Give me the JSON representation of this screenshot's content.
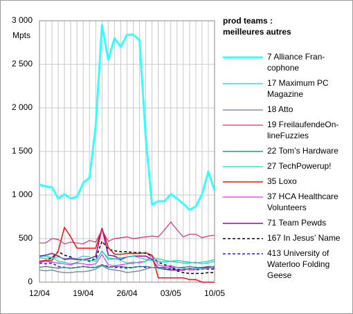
{
  "chart_data": {
    "type": "line",
    "y_label": "Mpts",
    "legend_title": [
      "prod teams :",
      "meilleures autres"
    ],
    "categories": [
      "12/04",
      null,
      null,
      null,
      null,
      null,
      null,
      "19/04",
      null,
      null,
      null,
      null,
      null,
      null,
      "26/04",
      null,
      null,
      null,
      null,
      null,
      null,
      "03/05",
      null,
      null,
      null,
      null,
      null,
      null,
      "10/05"
    ],
    "ylim": [
      0,
      3000
    ],
    "yticks": [
      0,
      500,
      {
        "value": 1000,
        "label": "1 000"
      },
      {
        "value": 1500,
        "label": "1 500"
      },
      {
        "value": 2000,
        "label": "2 000"
      },
      {
        "value": 2500,
        "label": "2 500"
      },
      {
        "value": 3000,
        "label": "3 000"
      }
    ],
    "grid": true,
    "legend": "right",
    "series": [
      {
        "name": "7 Alliance Fran-\ncophone",
        "color": "#33ffff",
        "width": 3,
        "dash": false,
        "values": [
          1120,
          1100,
          1090,
          960,
          1010,
          960,
          980,
          1140,
          1200,
          1800,
          2950,
          2550,
          2800,
          2700,
          2840,
          2840,
          2780,
          1650,
          890,
          930,
          930,
          1010,
          960,
          900,
          830,
          870,
          1010,
          1270,
          1050
        ]
      },
      {
        "name": "17 Maximum PC\nMagazine",
        "color": "#22c8c8",
        "width": 1.2,
        "dash": false,
        "values": [
          290,
          300,
          280,
          290,
          270,
          280,
          270,
          300,
          290,
          260,
          350,
          280,
          270,
          280,
          290,
          300,
          280,
          260,
          250,
          240,
          230,
          240,
          250,
          240,
          230,
          220,
          230,
          240,
          260
        ]
      },
      {
        "name": "18 Atto",
        "color": "#7f8fa6",
        "width": 1.5,
        "dash": false,
        "values": [
          140,
          130,
          140,
          120,
          110,
          110,
          120,
          120,
          130,
          150,
          190,
          150,
          140,
          130,
          110,
          120,
          130,
          150,
          170,
          160,
          160,
          170,
          170,
          160,
          150,
          160,
          150,
          160,
          170
        ]
      },
      {
        "name": "19 FreilaufendeOn-\nlineFuzzies",
        "color": "#d0307a",
        "width": 1.2,
        "dash": false,
        "values": [
          450,
          450,
          500,
          490,
          440,
          460,
          450,
          440,
          480,
          460,
          600,
          470,
          500,
          510,
          520,
          500,
          510,
          520,
          530,
          520,
          600,
          690,
          600,
          520,
          550,
          550,
          510,
          530,
          540
        ]
      },
      {
        "name": "22 Tom’s Hardware",
        "color": "#007a7a",
        "width": 1.2,
        "dash": false,
        "values": [
          170,
          180,
          170,
          160,
          170,
          160,
          170,
          180,
          170,
          170,
          200,
          170,
          180,
          180,
          170,
          170,
          180,
          180,
          170,
          170,
          170,
          160,
          170,
          170,
          180,
          170,
          170,
          180,
          180
        ]
      },
      {
        "name": "27 TechPowerup!",
        "color": "#00e890",
        "width": 1.2,
        "dash": false,
        "values": [
          280,
          270,
          290,
          240,
          230,
          210,
          230,
          260,
          250,
          240,
          360,
          260,
          270,
          250,
          220,
          230,
          220,
          240,
          280,
          270,
          250,
          240,
          230,
          220,
          220,
          230,
          210,
          220,
          240
        ]
      },
      {
        "name": "35 Loxo",
        "color": "#ee1111",
        "width": 1.5,
        "dash": false,
        "values": [
          240,
          250,
          250,
          360,
          630,
          520,
          390,
          390,
          390,
          390,
          620,
          400,
          320,
          320,
          330,
          330,
          330,
          340,
          310,
          50,
          50,
          50,
          50,
          50,
          30,
          30,
          0,
          0,
          0
        ]
      },
      {
        "name": "37 HCA Healthcare\nVolunteers",
        "color": "#ff22ff",
        "width": 1.2,
        "dash": false,
        "values": [
          230,
          240,
          230,
          220,
          210,
          200,
          220,
          210,
          200,
          210,
          320,
          200,
          190,
          200,
          210,
          220,
          230,
          240,
          310,
          200,
          180,
          190,
          170,
          160,
          140,
          150,
          160,
          160,
          170
        ]
      },
      {
        "name": "71 Team Pewds",
        "color": "#8a0aa0",
        "width": 1.5,
        "dash": false,
        "values": [
          300,
          310,
          330,
          300,
          260,
          270,
          260,
          260,
          270,
          300,
          620,
          310,
          300,
          260,
          290,
          300,
          300,
          300,
          260,
          160,
          150,
          140,
          140,
          140,
          160,
          150,
          160,
          170,
          160
        ]
      },
      {
        "name": "167 In Jesus’ Name",
        "color": "#000000",
        "width": 1.5,
        "dash": true,
        "values": [
          230,
          250,
          280,
          350,
          310,
          290,
          260,
          260,
          240,
          270,
          470,
          380,
          360,
          350,
          350,
          340,
          340,
          330,
          300,
          230,
          200,
          180,
          130,
          110,
          100,
          100,
          100,
          110,
          110
        ]
      },
      {
        "name": "413 University of\nWaterloo Folding\nGeese",
        "color": "#1a1aee",
        "width": 1.5,
        "dash": true,
        "values": [
          220,
          210,
          220,
          180,
          170,
          160,
          170,
          180,
          170,
          170,
          200,
          180,
          170,
          170,
          160,
          170,
          180,
          170,
          170,
          160,
          150,
          150,
          150,
          140,
          150,
          140,
          150,
          150,
          150
        ]
      }
    ]
  }
}
